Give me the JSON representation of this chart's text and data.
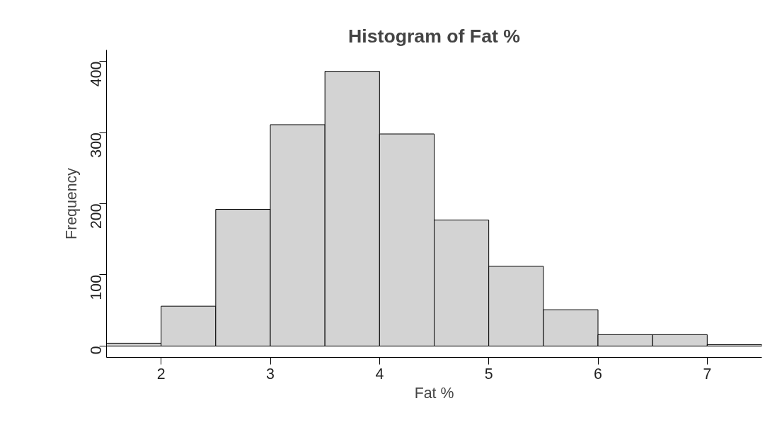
{
  "chart_data": {
    "type": "histogram",
    "title": "Histogram of Fat %",
    "xlabel": "Fat %",
    "ylabel": "Frequency",
    "bins": [
      1.5,
      2,
      2.5,
      3,
      3.5,
      4,
      4.5,
      5,
      5.5,
      6,
      6.5,
      7,
      7.5
    ],
    "values": [
      4,
      56,
      192,
      311,
      386,
      298,
      177,
      112,
      51,
      16,
      16,
      2
    ],
    "color": "#d3d3d3",
    "xlim": [
      1.5,
      7.5
    ],
    "xticks": [
      2,
      3,
      4,
      5,
      6,
      7
    ],
    "ylim": [
      -16,
      416
    ],
    "yticks": [
      0,
      100,
      200,
      300,
      400
    ],
    "grid": false
  }
}
